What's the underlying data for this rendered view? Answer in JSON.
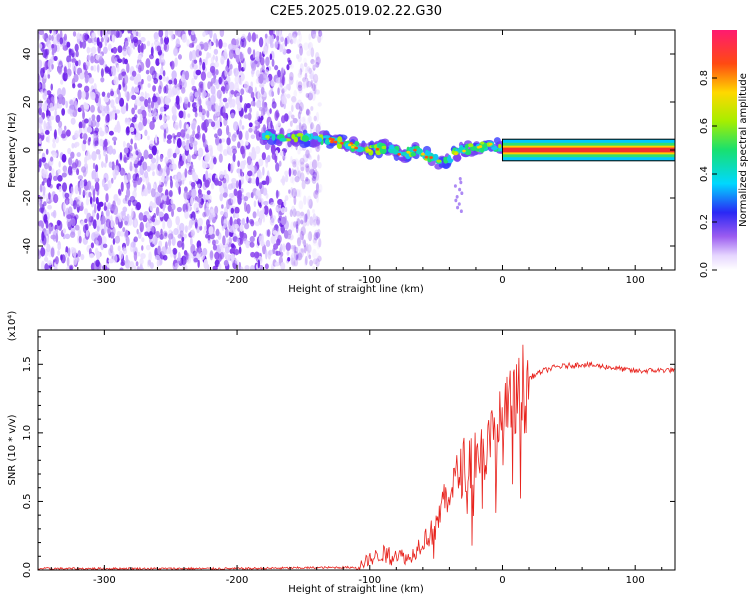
{
  "title": "C2E5.2025.019.02.22.G30",
  "colors": {
    "snr_line": "#e8231d",
    "ridge": "#f03030",
    "speckle": "#6a1de8"
  },
  "chart_data": [
    {
      "type": "heatmap",
      "xlabel": "Height of straight line (km)",
      "ylabel": "Frequency (Hz)",
      "xlim": [
        -350,
        130
      ],
      "ylim": [
        -50,
        50
      ],
      "x_ticks": [
        "-300",
        "-200",
        "-100",
        "0",
        "100"
      ],
      "y_ticks": [
        "-40",
        "-20",
        "0",
        "20",
        "40"
      ],
      "colorbar": {
        "label": "Normalized spectral amplitude",
        "range": [
          0.0,
          1.0
        ],
        "ticks": [
          "0.0",
          "0.2",
          "0.4",
          "0.6",
          "0.8"
        ]
      },
      "noise_region_x": [
        -350,
        -137
      ],
      "signal_track": {
        "x": [
          -180,
          -160,
          -140,
          -120,
          -100,
          -85,
          -75,
          -65,
          -55,
          -45,
          -40,
          -35,
          -30,
          -20,
          -10,
          0
        ],
        "freq": [
          6,
          5,
          5,
          3,
          0,
          1,
          -2,
          0,
          -3,
          -5,
          -4,
          -1,
          0,
          1,
          2,
          1
        ]
      },
      "constant_line": {
        "x": [
          0,
          130
        ],
        "freq": 0
      },
      "grid": false
    },
    {
      "type": "line",
      "xlabel": "Height of straight line (km)",
      "ylabel": "SNR (10 * v/v)",
      "y_multiplier": "(x10⁴)",
      "xlim": [
        -350,
        130
      ],
      "ylim": [
        0,
        1.75
      ],
      "x_ticks": [
        "-300",
        "-200",
        "-100",
        "0",
        "100"
      ],
      "y_ticks": [
        "0.0",
        "0.5",
        "1.0",
        "1.5"
      ],
      "series": [
        {
          "x": [
            -350,
            -200,
            -110,
            -100,
            -90,
            -80,
            -70,
            -60,
            -50,
            -45,
            -40,
            -35,
            -30,
            -25,
            -20,
            -15,
            -10,
            -5,
            0,
            5,
            10,
            15,
            20,
            30,
            40,
            60,
            80,
            100,
            130
          ],
          "values": [
            0.01,
            0.01,
            0.02,
            0.08,
            0.12,
            0.12,
            0.08,
            0.22,
            0.3,
            0.5,
            0.6,
            0.65,
            0.75,
            0.8,
            0.85,
            0.85,
            0.9,
            1.0,
            1.05,
            1.15,
            1.2,
            1.3,
            1.4,
            1.45,
            1.48,
            1.5,
            1.48,
            1.45,
            1.46
          ]
        }
      ],
      "grid": false
    }
  ]
}
